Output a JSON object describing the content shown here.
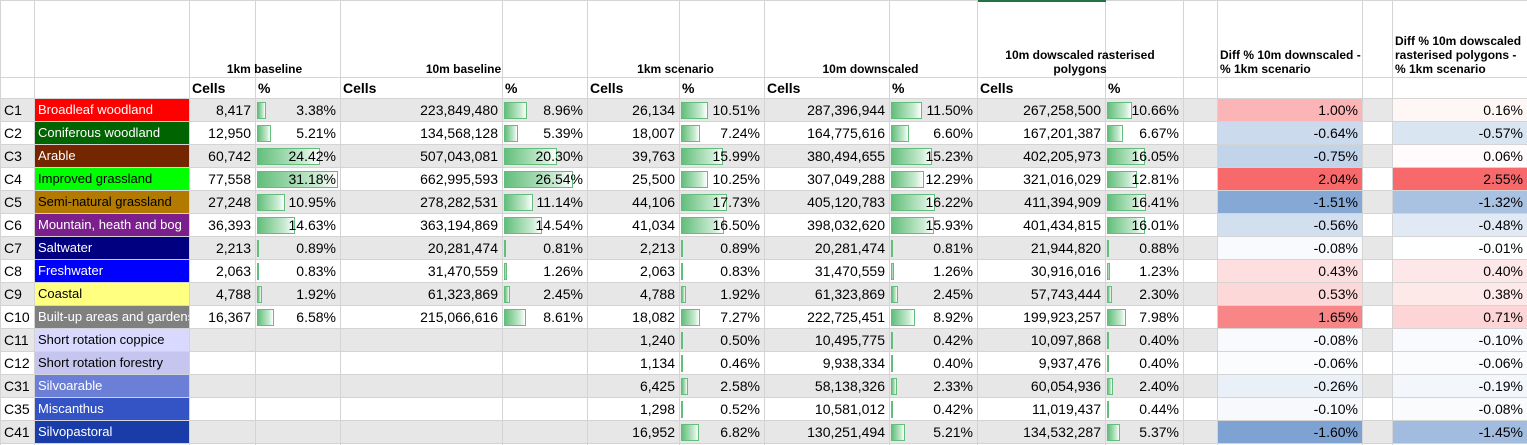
{
  "header": {
    "groups": [
      {
        "key": "b1k",
        "title": "1km baseline"
      },
      {
        "key": "b10",
        "title": "10m baseline"
      },
      {
        "key": "s1k",
        "title": "1km scenario"
      },
      {
        "key": "d10",
        "title": "10m downscaled"
      },
      {
        "key": "r10",
        "title": "10m dowscaled rasterised polygons"
      },
      {
        "key": "diffA",
        "title": "Diff % 10m downscaled - % 1km scenario"
      },
      {
        "key": "diffB",
        "title": "Diff % 10m dowscaled rasterised polygons  - % 1km scenario"
      }
    ],
    "cells_label": "Cells",
    "pct_label": "%"
  },
  "rows": [
    {
      "code": "C1",
      "name": "Broadleaf woodland",
      "color": "#ff0000",
      "text": "#ffffff",
      "b1k_cells": "8,417",
      "b1k_pct": "3.38%",
      "b1k_val": 3.38,
      "b10_cells": "223,849,480",
      "b10_pct": "8.96%",
      "b10_val": 8.96,
      "s1k_cells": "26,134",
      "s1k_pct": "10.51%",
      "s1k_val": 10.51,
      "d10_cells": "287,396,944",
      "d10_pct": "11.50%",
      "d10_val": 11.5,
      "r10_cells": "267,258,500",
      "r10_pct": "10.66%",
      "r10_val": 10.66,
      "diffA": "1.00%",
      "diffA_val": 1.0,
      "diffB": "0.16%",
      "diffB_val": 0.16
    },
    {
      "code": "C2",
      "name": "Coniferous woodland",
      "color": "#006400",
      "text": "#ffffff",
      "b1k_cells": "12,950",
      "b1k_pct": "5.21%",
      "b1k_val": 5.21,
      "b10_cells": "134,568,128",
      "b10_pct": "5.39%",
      "b10_val": 5.39,
      "s1k_cells": "18,007",
      "s1k_pct": "7.24%",
      "s1k_val": 7.24,
      "d10_cells": "164,775,616",
      "d10_pct": "6.60%",
      "d10_val": 6.6,
      "r10_cells": "167,201,387",
      "r10_pct": "6.67%",
      "r10_val": 6.67,
      "diffA": "-0.64%",
      "diffA_val": -0.64,
      "diffB": "-0.57%",
      "diffB_val": -0.57
    },
    {
      "code": "C3",
      "name": "Arable",
      "color": "#732600",
      "text": "#ffffff",
      "b1k_cells": "60,742",
      "b1k_pct": "24.42%",
      "b1k_val": 24.42,
      "b10_cells": "507,043,081",
      "b10_pct": "20.30%",
      "b10_val": 20.3,
      "s1k_cells": "39,763",
      "s1k_pct": "15.99%",
      "s1k_val": 15.99,
      "d10_cells": "380,494,655",
      "d10_pct": "15.23%",
      "d10_val": 15.23,
      "r10_cells": "402,205,973",
      "r10_pct": "16.05%",
      "r10_val": 16.05,
      "diffA": "-0.75%",
      "diffA_val": -0.75,
      "diffB": "0.06%",
      "diffB_val": 0.06
    },
    {
      "code": "C4",
      "name": "Improved grassland",
      "color": "#00ff00",
      "text": "#000000",
      "b1k_cells": "77,558",
      "b1k_pct": "31.18%",
      "b1k_val": 31.18,
      "b10_cells": "662,995,593",
      "b10_pct": "26.54%",
      "b10_val": 26.54,
      "s1k_cells": "25,500",
      "s1k_pct": "10.25%",
      "s1k_val": 10.25,
      "d10_cells": "307,049,288",
      "d10_pct": "12.29%",
      "d10_val": 12.29,
      "r10_cells": "321,016,029",
      "r10_pct": "12.81%",
      "r10_val": 12.81,
      "diffA": "2.04%",
      "diffA_val": 2.04,
      "diffB": "2.55%",
      "diffB_val": 2.55
    },
    {
      "code": "C5",
      "name": "Semi-natural grassland",
      "color": "#b37a00",
      "text": "#000000",
      "b1k_cells": "27,248",
      "b1k_pct": "10.95%",
      "b1k_val": 10.95,
      "b10_cells": "278,282,531",
      "b10_pct": "11.14%",
      "b10_val": 11.14,
      "s1k_cells": "44,106",
      "s1k_pct": "17.73%",
      "s1k_val": 17.73,
      "d10_cells": "405,120,783",
      "d10_pct": "16.22%",
      "d10_val": 16.22,
      "r10_cells": "411,394,909",
      "r10_pct": "16.41%",
      "r10_val": 16.41,
      "diffA": "-1.51%",
      "diffA_val": -1.51,
      "diffB": "-1.32%",
      "diffB_val": -1.32
    },
    {
      "code": "C6",
      "name": "Mountain, heath and bog",
      "color": "#7a1f8c",
      "text": "#ffffff",
      "b1k_cells": "36,393",
      "b1k_pct": "14.63%",
      "b1k_val": 14.63,
      "b10_cells": "363,194,869",
      "b10_pct": "14.54%",
      "b10_val": 14.54,
      "s1k_cells": "41,034",
      "s1k_pct": "16.50%",
      "s1k_val": 16.5,
      "d10_cells": "398,032,620",
      "d10_pct": "15.93%",
      "d10_val": 15.93,
      "r10_cells": "401,434,815",
      "r10_pct": "16.01%",
      "r10_val": 16.01,
      "diffA": "-0.56%",
      "diffA_val": -0.56,
      "diffB": "-0.48%",
      "diffB_val": -0.48
    },
    {
      "code": "C7",
      "name": "Saltwater",
      "color": "#000080",
      "text": "#ffffff",
      "b1k_cells": "2,213",
      "b1k_pct": "0.89%",
      "b1k_val": 0.89,
      "b10_cells": "20,281,474",
      "b10_pct": "0.81%",
      "b10_val": 0.81,
      "s1k_cells": "2,213",
      "s1k_pct": "0.89%",
      "s1k_val": 0.89,
      "d10_cells": "20,281,474",
      "d10_pct": "0.81%",
      "d10_val": 0.81,
      "r10_cells": "21,944,820",
      "r10_pct": "0.88%",
      "r10_val": 0.88,
      "diffA": "-0.08%",
      "diffA_val": -0.08,
      "diffB": "-0.01%",
      "diffB_val": -0.01
    },
    {
      "code": "C8",
      "name": "Freshwater",
      "color": "#0000ff",
      "text": "#ffffff",
      "b1k_cells": "2,063",
      "b1k_pct": "0.83%",
      "b1k_val": 0.83,
      "b10_cells": "31,470,559",
      "b10_pct": "1.26%",
      "b10_val": 1.26,
      "s1k_cells": "2,063",
      "s1k_pct": "0.83%",
      "s1k_val": 0.83,
      "d10_cells": "31,470,559",
      "d10_pct": "1.26%",
      "d10_val": 1.26,
      "r10_cells": "30,916,016",
      "r10_pct": "1.23%",
      "r10_val": 1.23,
      "diffA": "0.43%",
      "diffA_val": 0.43,
      "diffB": "0.40%",
      "diffB_val": 0.4
    },
    {
      "code": "C9",
      "name": "Coastal",
      "color": "#ffff80",
      "text": "#000000",
      "b1k_cells": "4,788",
      "b1k_pct": "1.92%",
      "b1k_val": 1.92,
      "b10_cells": "61,323,869",
      "b10_pct": "2.45%",
      "b10_val": 2.45,
      "s1k_cells": "4,788",
      "s1k_pct": "1.92%",
      "s1k_val": 1.92,
      "d10_cells": "61,323,869",
      "d10_pct": "2.45%",
      "d10_val": 2.45,
      "r10_cells": "57,743,444",
      "r10_pct": "2.30%",
      "r10_val": 2.3,
      "diffA": "0.53%",
      "diffA_val": 0.53,
      "diffB": "0.38%",
      "diffB_val": 0.38
    },
    {
      "code": "C10",
      "name": "Built-up areas and gardens",
      "color": "#808080",
      "text": "#ffffff",
      "b1k_cells": "16,367",
      "b1k_pct": "6.58%",
      "b1k_val": 6.58,
      "b10_cells": "215,066,616",
      "b10_pct": "8.61%",
      "b10_val": 8.61,
      "s1k_cells": "18,082",
      "s1k_pct": "7.27%",
      "s1k_val": 7.27,
      "d10_cells": "222,725,451",
      "d10_pct": "8.92%",
      "d10_val": 8.92,
      "r10_cells": "199,923,257",
      "r10_pct": "7.98%",
      "r10_val": 7.98,
      "diffA": "1.65%",
      "diffA_val": 1.65,
      "diffB": "0.71%",
      "diffB_val": 0.71
    },
    {
      "code": "C11",
      "name": "Short rotation coppice",
      "color": "#d9d9ff",
      "text": "#000000",
      "b1k_cells": "",
      "b1k_pct": "",
      "b1k_val": null,
      "b10_cells": "",
      "b10_pct": "",
      "b10_val": null,
      "s1k_cells": "1,240",
      "s1k_pct": "0.50%",
      "s1k_val": 0.5,
      "d10_cells": "10,495,775",
      "d10_pct": "0.42%",
      "d10_val": 0.42,
      "r10_cells": "10,097,868",
      "r10_pct": "0.40%",
      "r10_val": 0.4,
      "diffA": "-0.08%",
      "diffA_val": -0.08,
      "diffB": "-0.10%",
      "diffB_val": -0.1
    },
    {
      "code": "C12",
      "name": "Short rotation forestry",
      "color": "#c5c5f0",
      "text": "#000000",
      "b1k_cells": "",
      "b1k_pct": "",
      "b1k_val": null,
      "b10_cells": "",
      "b10_pct": "",
      "b10_val": null,
      "s1k_cells": "1,134",
      "s1k_pct": "0.46%",
      "s1k_val": 0.46,
      "d10_cells": "9,938,334",
      "d10_pct": "0.40%",
      "d10_val": 0.4,
      "r10_cells": "9,937,476",
      "r10_pct": "0.40%",
      "r10_val": 0.4,
      "diffA": "-0.06%",
      "diffA_val": -0.06,
      "diffB": "-0.06%",
      "diffB_val": -0.06
    },
    {
      "code": "C31",
      "name": "Silvoarable",
      "color": "#6b7fd6",
      "text": "#ffffff",
      "b1k_cells": "",
      "b1k_pct": "",
      "b1k_val": null,
      "b10_cells": "",
      "b10_pct": "",
      "b10_val": null,
      "s1k_cells": "6,425",
      "s1k_pct": "2.58%",
      "s1k_val": 2.58,
      "d10_cells": "58,138,326",
      "d10_pct": "2.33%",
      "d10_val": 2.33,
      "r10_cells": "60,054,936",
      "r10_pct": "2.40%",
      "r10_val": 2.4,
      "diffA": "-0.26%",
      "diffA_val": -0.26,
      "diffB": "-0.19%",
      "diffB_val": -0.19
    },
    {
      "code": "C35",
      "name": "Miscanthus",
      "color": "#3453c4",
      "text": "#ffffff",
      "b1k_cells": "",
      "b1k_pct": "",
      "b1k_val": null,
      "b10_cells": "",
      "b10_pct": "",
      "b10_val": null,
      "s1k_cells": "1,298",
      "s1k_pct": "0.52%",
      "s1k_val": 0.52,
      "d10_cells": "10,581,012",
      "d10_pct": "0.42%",
      "d10_val": 0.42,
      "r10_cells": "11,019,437",
      "r10_pct": "0.44%",
      "r10_val": 0.44,
      "diffA": "-0.10%",
      "diffA_val": -0.1,
      "diffB": "-0.08%",
      "diffB_val": -0.08
    },
    {
      "code": "C41",
      "name": "Silvopastoral",
      "color": "#1a3ca8",
      "text": "#ffffff",
      "b1k_cells": "",
      "b1k_pct": "",
      "b1k_val": null,
      "b10_cells": "",
      "b10_pct": "",
      "b10_val": null,
      "s1k_cells": "16,952",
      "s1k_pct": "6.82%",
      "s1k_val": 6.82,
      "d10_cells": "130,251,494",
      "d10_pct": "5.21%",
      "d10_val": 5.21,
      "r10_cells": "134,532,287",
      "r10_pct": "5.37%",
      "r10_val": 5.37,
      "diffA": "-1.60%",
      "diffA_val": -1.6,
      "diffB": "-1.45%",
      "diffB_val": -1.45
    }
  ],
  "colors": {
    "row_band": "#e7e7e7",
    "gridline": "#d4d4d4",
    "databar": "#63be7b",
    "diff_positive": "#f8696b",
    "diff_negative": "#5a8ac6",
    "selection_accent": "#217346"
  },
  "scales": {
    "pct_bar_max": 31.18,
    "diffA_max_abs": 2.04,
    "diffB_max_abs": 2.55
  }
}
